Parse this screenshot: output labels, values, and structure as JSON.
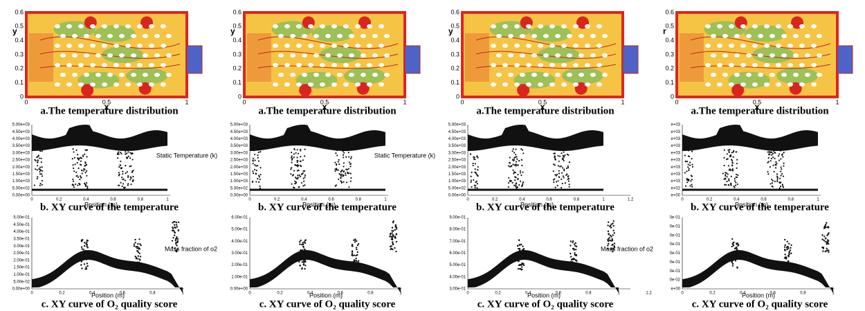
{
  "panels": [
    {
      "contour": {
        "y_label": "y",
        "x_label": "x",
        "yticks": [
          "0",
          "0.1",
          "0.2",
          "0.3",
          "0.4",
          "0.5",
          "0.6"
        ],
        "xticks": [
          "0",
          "0.5",
          "1"
        ],
        "caption": "a.The temperature distribution"
      },
      "temperature": {
        "yticks": [
          "0.00e+00",
          "5.00e+02",
          "1.00e+03",
          "1.50e+03",
          "2.00e+03",
          "2.50e+03",
          "3.00e+03",
          "3.50e+03",
          "4.00e+03",
          "4.50e+03",
          "5.00e+03"
        ],
        "xticks": [
          "0",
          "0.2",
          "0.4",
          "0.6",
          "0.8",
          "1"
        ],
        "x_label": "Position (m)",
        "legend": "Static Temperature (k)",
        "caption": "b.  XY curve of the temperature"
      },
      "oxygen": {
        "yticks": [
          "0.00e+00",
          "5.00e-02",
          "1.00e-01",
          "1.50e-01",
          "2.00e-01",
          "2.50e-01",
          "3.00e-01",
          "3.50e-01",
          "4.00e-01",
          "4.50e-01",
          "5.00e-01"
        ],
        "xticks": [
          "0",
          "0.2",
          "0.4",
          "0.6",
          "0.8",
          "1"
        ],
        "x_label": "Position (m)",
        "legend": "Mass fraction of o2",
        "caption": "c.  XY curve of O₂ quality score"
      }
    },
    {
      "contour": {
        "y_label": "y",
        "x_label": "x",
        "yticks": [
          "0",
          "0.1",
          "0.2",
          "0.3",
          "0.4",
          "0.5",
          "0.6"
        ],
        "xticks": [
          "0",
          "0.5",
          "1"
        ],
        "caption": "a.The temperature distribution"
      },
      "temperature": {
        "yticks": [
          "0.00e+00",
          "5.00e+02",
          "1.00e+03",
          "1.50e+03",
          "2.00e+03",
          "2.50e+03",
          "3.00e+03",
          "3.50e+03",
          "4.00e+03",
          "4.50e+03",
          "5.00e+03"
        ],
        "xticks": [
          "0",
          "0.2",
          "0.4",
          "0.6",
          "0.8",
          "1"
        ],
        "x_label": "Position (m)",
        "legend": "Static Temperature (k)",
        "caption": "b.  XY curve of the temperature"
      },
      "oxygen": {
        "yticks": [
          "0.00e+00",
          "1.00e-01",
          "2.00e-01",
          "3.00e-01",
          "4.00e-01",
          "5.00e-01",
          "6.00e-01"
        ],
        "xticks": [
          "0",
          "0.2",
          "0.4",
          "0.6",
          "0.8",
          "1"
        ],
        "x_label": "Position (m)",
        "caption": "c.  XY curve of O₂ quality score"
      }
    },
    {
      "contour": {
        "y_label": "y",
        "x_label": "x",
        "yticks": [
          "0",
          "0.1",
          "0.2",
          "0.3",
          "0.4",
          "0.5",
          "0.6"
        ],
        "xticks": [
          "0",
          "0.5",
          "1"
        ],
        "caption": "a.The temperature distribution"
      },
      "temperature": {
        "yticks": [
          "0.00e+00",
          "5.00e+02",
          "1.00e+03",
          "1.50e+03",
          "2.00e+03",
          "2.50e+03",
          "3.00e+03",
          "3.50e+03",
          "4.00e+03",
          "4.50e+03",
          "5.00e+03"
        ],
        "xticks": [
          "0",
          "0.2",
          "0.4",
          "0.6",
          "0.8",
          "1",
          "1.2"
        ],
        "x_label": "Position (m)",
        "caption": "b.  XY curve of the temperature"
      },
      "oxygen": {
        "yticks": [
          "3.00e-01",
          "4.00e-01",
          "5.00e-01",
          "6.00e-01",
          "7.00e-01",
          "8.00e-01",
          "9.00e-01"
        ],
        "xticks": [
          "0",
          "0.2",
          "0.4",
          "0.6",
          "0.8",
          "1",
          "1.2"
        ],
        "x_label": "Position (m)",
        "legend": "Mass fraction of o2",
        "caption": "c.  XY curve of O₂ quality score"
      }
    },
    {
      "contour": {
        "y_label": "r",
        "x_label": "x",
        "yticks": [
          "0",
          "0.1",
          "0.2",
          "0.3",
          "0.4",
          "0.5",
          "0.6"
        ],
        "xticks": [
          "0",
          "0.5",
          "1"
        ],
        "caption": "a.The temperature distribution"
      },
      "temperature": {
        "yticks": [
          "e+00",
          "e+02",
          "e+03",
          "e+03",
          "e+03",
          "e+03",
          "e+03",
          "e+03",
          "e+03",
          "e+03",
          "e+03"
        ],
        "xticks": [
          "0",
          "0.2",
          "0.4",
          "0.6",
          "0.8",
          "1"
        ],
        "x_label": "Position (m)",
        "caption": "b.  XY curve of the temperature"
      },
      "oxygen": {
        "yticks": [
          "e+00",
          "0e-02",
          "0e-01",
          "0e-01",
          "0e-01",
          "0e-01",
          "0e-01",
          "0e-01",
          "0e-01"
        ],
        "xticks": [
          "0",
          "0.2",
          "0.4",
          "0.6",
          "0.8",
          "1"
        ],
        "x_label": "Position (m)",
        "caption": "c.  XY curve of O₂ quality score"
      }
    }
  ]
}
